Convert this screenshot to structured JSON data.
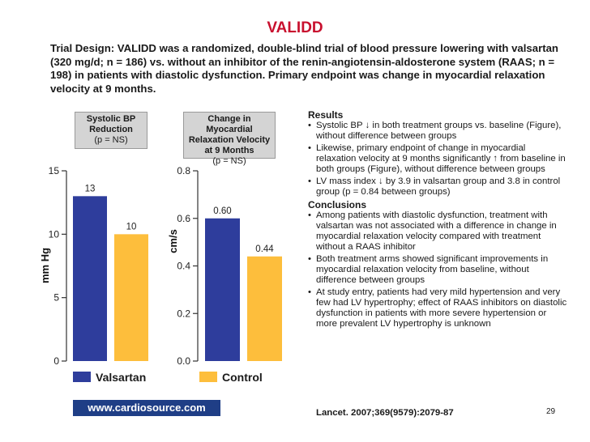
{
  "title": "VALIDD",
  "trial_design": "Trial Design: VALIDD was a randomized, double-blind trial of blood pressure lowering with valsartan (320 mg/d; n = 186) vs. without an inhibitor of the renin-angiotensin-aldosterone system (RAAS; n = 198) in patients with diastolic dysfunction. Primary endpoint was change in myocardial relaxation velocity at 9 months.",
  "colors": {
    "valsartan": "#2e3d9c",
    "control": "#fdbe3c",
    "title": "#c8102e",
    "logo_bg": "#1f3e86"
  },
  "chart_data": [
    {
      "type": "bar",
      "header_line1": "Systolic BP",
      "header_line2": "Reduction",
      "header_p": "(p = NS)",
      "ylabel": "mm Hg",
      "ylim": [
        0,
        15
      ],
      "yticks": [
        "0",
        "5",
        "10",
        "15"
      ],
      "grid": false,
      "series": [
        {
          "name": "Valsartan",
          "values": [
            13
          ]
        },
        {
          "name": "Control",
          "values": [
            10
          ]
        }
      ],
      "data_labels": [
        "13",
        "10"
      ]
    },
    {
      "type": "bar",
      "header_line1": "Change in Myocardial",
      "header_line2": "Relaxation Velocity",
      "header_line3": "at 9 Months",
      "header_p": "(p = NS)",
      "ylabel": "cm/s",
      "ylim": [
        0,
        0.8
      ],
      "yticks": [
        "0.0",
        "0.2",
        "0.4",
        "0.6",
        "0.8"
      ],
      "grid": false,
      "series": [
        {
          "name": "Valsartan",
          "values": [
            0.6
          ]
        },
        {
          "name": "Control",
          "values": [
            0.44
          ]
        }
      ],
      "data_labels": [
        "0.60",
        "0.44"
      ]
    }
  ],
  "legend": {
    "valsartan": "Valsartan",
    "control": "Control"
  },
  "results": {
    "heading": "Results",
    "items": [
      "Systolic BP ↓ in both treatment groups vs. baseline (Figure), without difference between groups",
      "Likewise, primary endpoint of change in myocardial relaxation velocity at 9 months significantly ↑ from baseline in both groups (Figure), without difference between groups",
      "LV mass index ↓ by 3.9 in valsartan group and 3.8 in control group (p = 0.84 between groups)"
    ]
  },
  "conclusions": {
    "heading": "Conclusions",
    "items": [
      "Among patients with diastolic dysfunction, treatment with valsartan was not associated with a difference in change in myocardial relaxation velocity compared with treatment without a RAAS inhibitor",
      "Both treatment arms showed significant improvements in myocardial relaxation velocity from baseline, without difference between groups",
      "At study entry, patients had very mild hypertension and very few had LV hypertrophy; effect of RAAS inhibitors on diastolic dysfunction in patients with more severe hypertension or more prevalent LV hypertrophy is unknown"
    ]
  },
  "logo_text": "www.cardiosource.com",
  "citation": "Lancet. 2007;369(9579):2079-87",
  "page_number": "29"
}
